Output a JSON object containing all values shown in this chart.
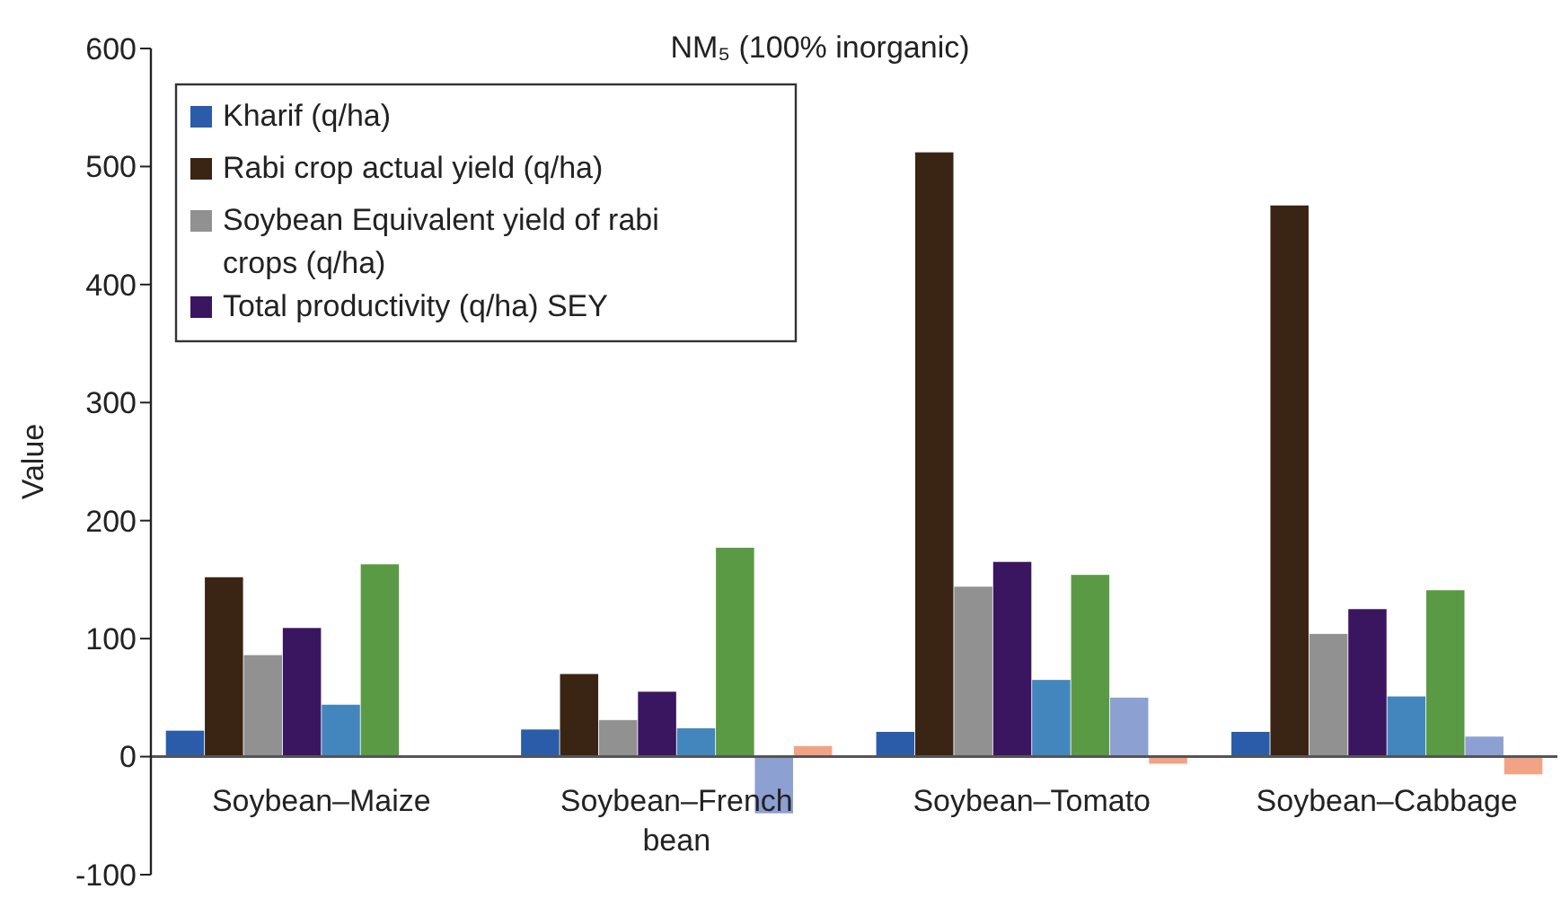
{
  "chart_data": {
    "type": "bar",
    "title": "NM₅ (100% inorganic)",
    "ylabel": "Value",
    "categories": [
      "Soybean–Maize",
      "Soybean–French bean",
      "Soybean–Tomato",
      "Soybean–Cabbage"
    ],
    "series": [
      {
        "name": "Kharif (q/ha)",
        "color": "#2a5caa",
        "values": [
          22,
          23,
          21,
          21
        ]
      },
      {
        "name": "Rabi crop actual yield (q/ha)",
        "color": "#3a2414",
        "values": [
          152,
          70,
          512,
          467
        ]
      },
      {
        "name": "Soybean Equivalent yield of rabi crops (q/ha)",
        "color": "#919191",
        "values": [
          86,
          31,
          144,
          104
        ]
      },
      {
        "name": "Total productivity (q/ha) SEY",
        "color": "#3a1660",
        "values": [
          109,
          55,
          165,
          125
        ]
      },
      {
        "color": "#4286bd",
        "values": [
          44,
          24,
          65,
          51
        ]
      },
      {
        "color": "#5a9a45",
        "values": [
          163,
          177,
          154,
          141
        ]
      },
      {
        "color": "#8da0d2",
        "values": [
          null,
          -48,
          50,
          17
        ]
      },
      {
        "color": "#f2a385",
        "values": [
          null,
          9,
          -6,
          -15
        ]
      }
    ],
    "ylim": [
      -100,
      600
    ],
    "yticks": [
      -100,
      0,
      100,
      200,
      300,
      400,
      500,
      600
    ],
    "grid": false,
    "legend": "top left"
  }
}
